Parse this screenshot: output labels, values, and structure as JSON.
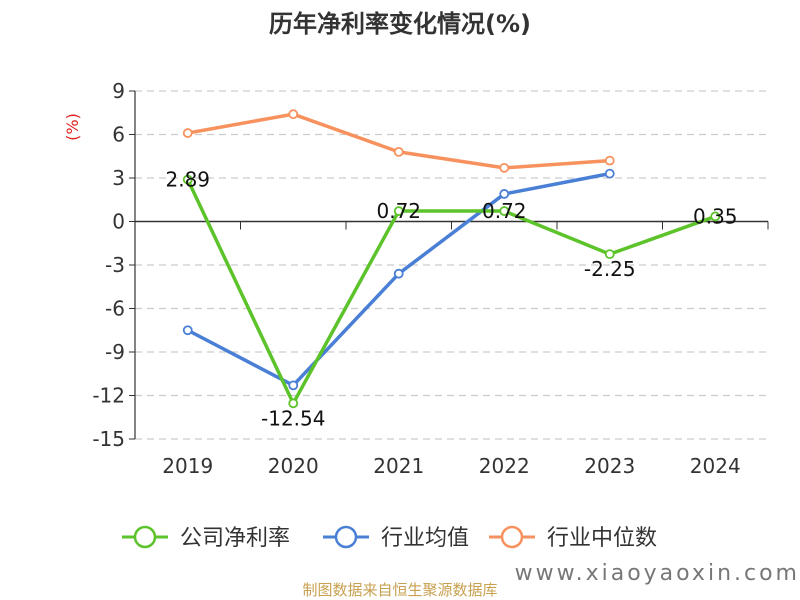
{
  "chart_data": {
    "type": "line",
    "title": "历年净利率变化情况(%)",
    "ylabel": "(%)",
    "xlabel": "",
    "categories": [
      "2019",
      "2020",
      "2021",
      "2022",
      "2023",
      "2024"
    ],
    "ylim": [
      -15,
      9
    ],
    "yticks": [
      "9",
      "6",
      "3",
      "0",
      "-3",
      "-6",
      "-9",
      "-12",
      "-15"
    ],
    "ytick_values": [
      9,
      6,
      3,
      0,
      -3,
      -6,
      -9,
      -12,
      -15
    ],
    "grid": true,
    "legend_position": "bottom",
    "series": [
      {
        "name": "公司净利率",
        "color": "#5cc32b",
        "values": [
          2.89,
          -12.54,
          0.72,
          0.72,
          -2.25,
          0.35
        ],
        "labels": [
          "2.89",
          "-12.54",
          "0.72",
          "0.72",
          "-2.25",
          "0.35"
        ]
      },
      {
        "name": "行业均值",
        "color": "#4a7fd6",
        "values": [
          -7.5,
          -11.3,
          -3.6,
          1.9,
          3.3,
          null
        ]
      },
      {
        "name": "行业中位数",
        "color": "#f7925f",
        "values": [
          6.1,
          7.4,
          4.8,
          3.7,
          4.2,
          null
        ]
      }
    ]
  },
  "source": "制图数据来自恒生聚源数据库",
  "watermark": "www.xiaoyaoxin.com"
}
